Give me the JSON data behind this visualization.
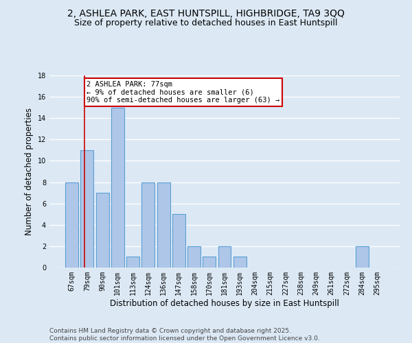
{
  "title": "2, ASHLEA PARK, EAST HUNTSPILL, HIGHBRIDGE, TA9 3QQ",
  "subtitle": "Size of property relative to detached houses in East Huntspill",
  "xlabel": "Distribution of detached houses by size in East Huntspill",
  "ylabel": "Number of detached properties",
  "categories": [
    "67sqm",
    "79sqm",
    "90sqm",
    "101sqm",
    "113sqm",
    "124sqm",
    "136sqm",
    "147sqm",
    "158sqm",
    "170sqm",
    "181sqm",
    "193sqm",
    "204sqm",
    "215sqm",
    "227sqm",
    "238sqm",
    "249sqm",
    "261sqm",
    "272sqm",
    "284sqm",
    "295sqm"
  ],
  "values": [
    8,
    11,
    7,
    15,
    1,
    8,
    8,
    5,
    2,
    1,
    2,
    1,
    0,
    0,
    0,
    0,
    0,
    0,
    0,
    2,
    0
  ],
  "bar_color": "#aec6e8",
  "bar_edge_color": "#5a9fd4",
  "property_line_color": "#cc0000",
  "annotation_text": "2 ASHLEA PARK: 77sqm\n← 9% of detached houses are smaller (6)\n90% of semi-detached houses are larger (63) →",
  "annotation_box_color": "#ffffff",
  "annotation_box_edge": "#cc0000",
  "ylim": [
    0,
    18
  ],
  "yticks": [
    0,
    2,
    4,
    6,
    8,
    10,
    12,
    14,
    16,
    18
  ],
  "footer_line1": "Contains HM Land Registry data © Crown copyright and database right 2025.",
  "footer_line2": "Contains public sector information licensed under the Open Government Licence v3.0.",
  "background_color": "#dce9f5",
  "plot_bg_color": "#dce9f5",
  "grid_color": "#ffffff",
  "title_fontsize": 10,
  "subtitle_fontsize": 9,
  "axis_label_fontsize": 8.5,
  "tick_fontsize": 7,
  "annotation_fontsize": 7.5,
  "footer_fontsize": 6.5
}
